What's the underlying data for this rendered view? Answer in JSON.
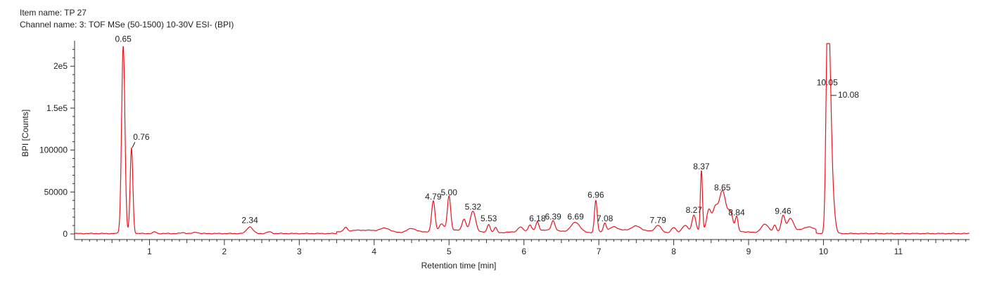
{
  "header": {
    "item_name": "Item name: TP 27",
    "channel_name": "Channel name: 3: TOF MSe (50-1500) 10-30V ESI- (BPI)"
  },
  "colors": {
    "trace": "#e8141e",
    "axis": "#333333"
  },
  "chart_data": {
    "type": "line",
    "xlabel": "Retention time [min]",
    "ylabel": "BPI [Counts]",
    "xlim": [
      0,
      11.95
    ],
    "ylim": [
      0,
      227000
    ],
    "x_ticks": [
      {
        "v": 1,
        "label": "1"
      },
      {
        "v": 2,
        "label": "2"
      },
      {
        "v": 3,
        "label": "3"
      },
      {
        "v": 4,
        "label": "4"
      },
      {
        "v": 5,
        "label": "5"
      },
      {
        "v": 6,
        "label": "6"
      },
      {
        "v": 7,
        "label": "7"
      },
      {
        "v": 8,
        "label": "8"
      },
      {
        "v": 9,
        "label": "9"
      },
      {
        "v": 10,
        "label": "10"
      },
      {
        "v": 11,
        "label": "11"
      }
    ],
    "y_ticks": [
      {
        "v": 0,
        "label": "0"
      },
      {
        "v": 50000,
        "label": "50000"
      },
      {
        "v": 100000,
        "label": "100000"
      },
      {
        "v": 150000,
        "label": "1.5e5"
      },
      {
        "v": 200000,
        "label": "2e5"
      }
    ],
    "baseline": 500,
    "peaks": [
      {
        "x": 0.65,
        "y": 224000,
        "w": 0.022,
        "label": "0.65"
      },
      {
        "x": 0.76,
        "y": 102000,
        "w": 0.018,
        "label": "0.76"
      },
      {
        "x": 1.07,
        "y": 2000,
        "w": 0.02
      },
      {
        "x": 1.45,
        "y": 1000,
        "w": 0.03
      },
      {
        "x": 1.62,
        "y": 1500,
        "w": 0.03
      },
      {
        "x": 2.34,
        "y": 8000,
        "w": 0.04,
        "label": "2.34"
      },
      {
        "x": 2.6,
        "y": 2000,
        "w": 0.03
      },
      {
        "x": 3.62,
        "y": 4500,
        "w": 0.02
      },
      {
        "x": 4.15,
        "y": 4000,
        "w": 0.06
      },
      {
        "x": 4.5,
        "y": 5000,
        "w": 0.06
      },
      {
        "x": 4.79,
        "y": 36000,
        "w": 0.022,
        "label": "4.79"
      },
      {
        "x": 4.9,
        "y": 8000,
        "w": 0.03
      },
      {
        "x": 5.0,
        "y": 41000,
        "w": 0.022,
        "label": "5.00"
      },
      {
        "x": 5.2,
        "y": 14000,
        "w": 0.025
      },
      {
        "x": 5.32,
        "y": 24000,
        "w": 0.035,
        "label": "5.32"
      },
      {
        "x": 5.53,
        "y": 10000,
        "w": 0.02,
        "label": "5.53"
      },
      {
        "x": 5.62,
        "y": 6000,
        "w": 0.02
      },
      {
        "x": 5.95,
        "y": 5000,
        "w": 0.03
      },
      {
        "x": 6.08,
        "y": 7000,
        "w": 0.02
      },
      {
        "x": 6.18,
        "y": 10000,
        "w": 0.02,
        "label": "6.18"
      },
      {
        "x": 6.39,
        "y": 12000,
        "w": 0.025,
        "label": "6.39"
      },
      {
        "x": 6.69,
        "y": 12000,
        "w": 0.06,
        "label": "6.69"
      },
      {
        "x": 6.96,
        "y": 38000,
        "w": 0.018,
        "label": "6.96"
      },
      {
        "x": 7.08,
        "y": 10000,
        "w": 0.02,
        "label": "7.08"
      },
      {
        "x": 7.2,
        "y": 5000,
        "w": 0.05
      },
      {
        "x": 7.5,
        "y": 5000,
        "w": 0.06
      },
      {
        "x": 7.79,
        "y": 8000,
        "w": 0.04,
        "label": "7.79"
      },
      {
        "x": 8.0,
        "y": 6000,
        "w": 0.03
      },
      {
        "x": 8.15,
        "y": 8000,
        "w": 0.04
      },
      {
        "x": 8.27,
        "y": 20000,
        "w": 0.025,
        "label": "8.27"
      },
      {
        "x": 8.37,
        "y": 72000,
        "w": 0.014,
        "label": "8.37"
      },
      {
        "x": 8.47,
        "y": 25000,
        "w": 0.03
      },
      {
        "x": 8.55,
        "y": 22000,
        "w": 0.03
      },
      {
        "x": 8.65,
        "y": 47000,
        "w": 0.05,
        "label": "8.65"
      },
      {
        "x": 8.76,
        "y": 20000,
        "w": 0.03
      },
      {
        "x": 8.84,
        "y": 17000,
        "w": 0.018,
        "label": "8.84"
      },
      {
        "x": 9.22,
        "y": 10000,
        "w": 0.05
      },
      {
        "x": 9.35,
        "y": 8000,
        "w": 0.02
      },
      {
        "x": 9.46,
        "y": 19000,
        "w": 0.025,
        "label": "9.46"
      },
      {
        "x": 9.56,
        "y": 15000,
        "w": 0.04
      },
      {
        "x": 9.8,
        "y": 4000,
        "w": 0.06
      },
      {
        "x": 10.05,
        "y": 174000,
        "w": 0.02,
        "label": "10.05"
      },
      {
        "x": 10.08,
        "y": 166000,
        "w": 0.025,
        "label": "10.08"
      },
      {
        "x": 10.12,
        "y": 40000,
        "w": 0.03
      }
    ]
  }
}
